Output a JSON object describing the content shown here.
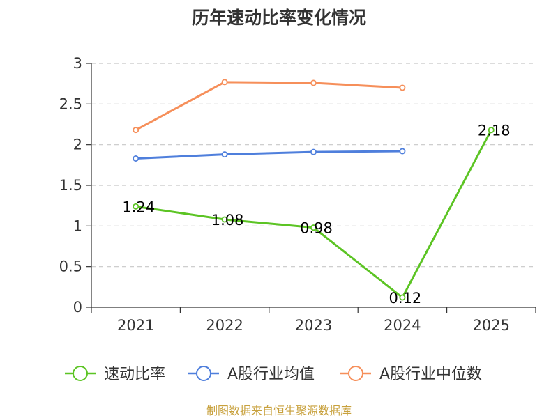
{
  "chart_data": {
    "type": "line",
    "title": "历年速动比率变化情况",
    "xlabel": "",
    "ylabel": "",
    "categories": [
      "2021",
      "2022",
      "2023",
      "2024",
      "2025"
    ],
    "ylim": [
      0,
      3
    ],
    "yticks": [
      0,
      0.5,
      1,
      1.5,
      2,
      2.5,
      3
    ],
    "ytick_labels": [
      "0",
      "0.5",
      "1",
      "1.5",
      "2",
      "2.5",
      "3"
    ],
    "grid": "horizontal dashed",
    "legend_position": "bottom",
    "series": [
      {
        "name": "速动比率",
        "color": "#5cc424",
        "values": [
          1.24,
          1.08,
          0.98,
          0.12,
          2.18
        ],
        "data_labels": [
          "1.24",
          "1.08",
          "0.98",
          "0.12",
          "2.18"
        ]
      },
      {
        "name": "A股行业均值",
        "color": "#4f7fdc",
        "values": [
          1.83,
          1.88,
          1.91,
          1.92,
          null
        ]
      },
      {
        "name": "A股行业中位数",
        "color": "#f68f5a",
        "values": [
          2.18,
          2.77,
          2.76,
          2.7,
          null
        ]
      }
    ]
  },
  "source": "制图数据来自恒生聚源数据库"
}
